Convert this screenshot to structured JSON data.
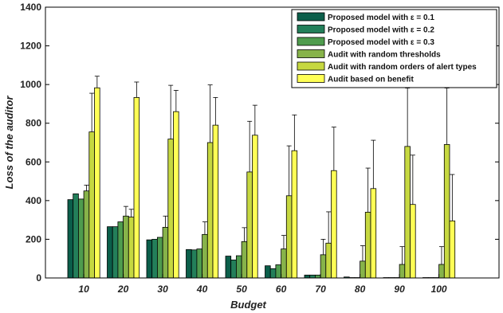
{
  "chart_data": {
    "type": "bar",
    "xlabel": "Budget",
    "ylabel": "Loss of the auditor",
    "ylim": [
      0,
      1400
    ],
    "yticks": [
      0,
      200,
      400,
      600,
      800,
      1000,
      1200,
      1400
    ],
    "categories": [
      "10",
      "20",
      "30",
      "40",
      "50",
      "60",
      "70",
      "80",
      "90",
      "100"
    ],
    "legend_position": "top-right",
    "series": [
      {
        "name": "Proposed model with ε = 0.1",
        "color": "#0b5e4a",
        "values": [
          405,
          265,
          197,
          147,
          113,
          63,
          15,
          5,
          2,
          2
        ],
        "errors": [
          0,
          0,
          0,
          0,
          0,
          0,
          0,
          0,
          0,
          0
        ]
      },
      {
        "name": "Proposed model with ε = 0.2",
        "color": "#237f5a",
        "values": [
          435,
          265,
          200,
          145,
          93,
          48,
          15,
          2,
          2,
          2
        ],
        "errors": [
          0,
          0,
          0,
          0,
          0,
          0,
          0,
          0,
          0,
          0
        ]
      },
      {
        "name": "Proposed model with ε = 0.3",
        "color": "#4f9c4e",
        "values": [
          408,
          290,
          210,
          150,
          115,
          68,
          15,
          2,
          2,
          2
        ],
        "errors": [
          0,
          0,
          0,
          0,
          0,
          0,
          0,
          0,
          0,
          0
        ]
      },
      {
        "name": "Audit with random thresholds",
        "color": "#87b34a",
        "values": [
          450,
          320,
          262,
          225,
          188,
          150,
          120,
          87,
          70,
          70
        ],
        "errors": [
          30,
          50,
          58,
          65,
          72,
          70,
          80,
          80,
          92,
          92
        ]
      },
      {
        "name": "Audit with random orders of alert types",
        "color": "#c6d840",
        "values": [
          755,
          315,
          718,
          700,
          548,
          425,
          180,
          340,
          680,
          690
        ],
        "errors": [
          200,
          40,
          278,
          298,
          262,
          258,
          162,
          228,
          302,
          292
        ]
      },
      {
        "name": "Audit based on benefit",
        "color": "#ffff55",
        "values": [
          983,
          933,
          860,
          790,
          738,
          658,
          555,
          462,
          380,
          295
        ],
        "errors": [
          60,
          80,
          110,
          143,
          155,
          185,
          225,
          250,
          255,
          240
        ]
      }
    ]
  }
}
